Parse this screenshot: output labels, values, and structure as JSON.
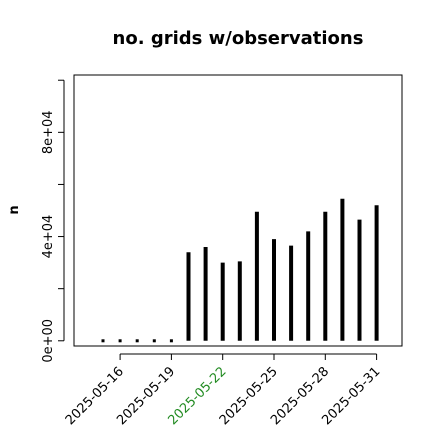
{
  "chart_data": {
    "type": "bar",
    "title": "no. grids w/observations",
    "xlabel": "",
    "ylabel": "n",
    "dates": [
      "2025-05-15",
      "2025-05-16",
      "2025-05-17",
      "2025-05-18",
      "2025-05-19",
      "2025-05-20",
      "2025-05-21",
      "2025-05-22",
      "2025-05-23",
      "2025-05-24",
      "2025-05-25",
      "2025-05-26",
      "2025-05-27",
      "2025-05-28",
      "2025-05-29",
      "2025-05-30",
      "2025-05-31"
    ],
    "values": [
      0,
      0,
      0,
      0,
      0,
      34000,
      36000,
      30000,
      30500,
      49500,
      39000,
      36500,
      42000,
      49500,
      54500,
      46500,
      52000
    ],
    "xticks": [
      {
        "label": "2025-05-16",
        "color": "#000000"
      },
      {
        "label": "2025-05-19",
        "color": "#000000"
      },
      {
        "label": "2025-05-22",
        "color": "#228B22"
      },
      {
        "label": "2025-05-25",
        "color": "#000000"
      },
      {
        "label": "2025-05-28",
        "color": "#000000"
      },
      {
        "label": "2025-05-31",
        "color": "#000000"
      }
    ],
    "yticks": [
      {
        "value": 0,
        "label": "0e+00"
      },
      {
        "value": 40000,
        "label": "4e+04"
      },
      {
        "value": 80000,
        "label": "8e+04"
      }
    ],
    "ylim": [
      -2000,
      102000
    ],
    "grid": false,
    "colors": {
      "bars": "#000000",
      "highlight_tick": "#228B22"
    }
  }
}
